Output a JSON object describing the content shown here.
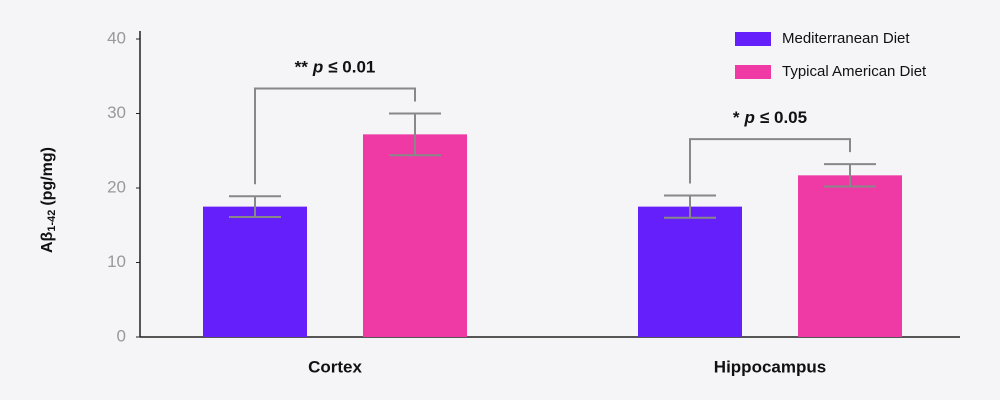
{
  "chart_data": {
    "type": "bar",
    "ylabel": {
      "main": "Aβ",
      "subscript": "1-42",
      "unit": "(pg/mg)"
    },
    "categories": [
      "Cortex",
      "Hippocampus"
    ],
    "series": [
      {
        "name": "Mediterranean Diet",
        "color": "#651ffb",
        "values": [
          17.5,
          17.5
        ],
        "errors": [
          1.4,
          1.5
        ]
      },
      {
        "name": "Typical American Diet",
        "color": "#ef3aa6",
        "values": [
          27.2,
          21.7
        ],
        "errors": [
          2.8,
          1.5
        ]
      }
    ],
    "annotations": [
      {
        "stars": "**",
        "symbol": "p",
        "threshold": "≤ 0.01"
      },
      {
        "stars": "*",
        "symbol": "p",
        "threshold": "≤ 0.05"
      }
    ],
    "ylim": [
      0,
      40
    ],
    "yticks": [
      0,
      10,
      20,
      30,
      40
    ],
    "legend": "top-right"
  }
}
